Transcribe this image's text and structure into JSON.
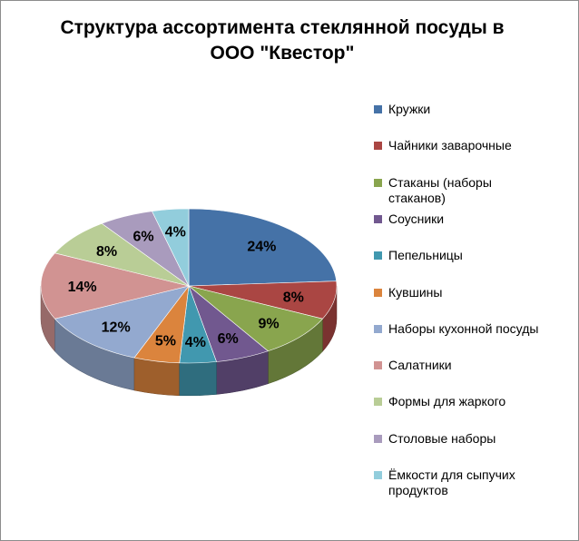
{
  "chart_data": {
    "type": "pie",
    "title": "Структура ассортимента стеклянной посуды в ООО \"Квестор\"",
    "title_lines": [
      "Структура ассортимента стеклянной посуды в",
      "ООО \"Квестор\""
    ],
    "style": "3d",
    "legend_position": "right",
    "categories": [
      "Кружки",
      "Чайники заварочные",
      "Стаканы (наборы стаканов)",
      "Соусники",
      "Пепельницы",
      "Кувшины",
      "Наборы кухонной посуды",
      "Салатники",
      "Формы для жаркого",
      "Столовые наборы",
      "Ёмкости для сыпучих продуктов"
    ],
    "legend_lines": [
      [
        "Кружки"
      ],
      [
        "Чайники заварочные"
      ],
      [
        "Стаканы (наборы",
        "стаканов)"
      ],
      [
        "Соусники"
      ],
      [
        "Пепельницы"
      ],
      [
        "Кувшины"
      ],
      [
        "Наборы кухонной посуды"
      ],
      [
        "Салатники"
      ],
      [
        "Формы для жаркого"
      ],
      [
        "Столовые наборы"
      ],
      [
        "Ёмкости для сыпучих",
        "продуктов"
      ]
    ],
    "values": [
      24,
      8,
      9,
      6,
      4,
      5,
      12,
      14,
      8,
      6,
      4
    ],
    "data_labels": [
      "24%",
      "8%",
      "9%",
      "6%",
      "4%",
      "5%",
      "12%",
      "14%",
      "8%",
      "6%",
      "4%"
    ],
    "colors": [
      "#4572A7",
      "#AA4643",
      "#89A54E",
      "#71588F",
      "#4198AF",
      "#DB843D",
      "#93A9CF",
      "#D19392",
      "#B9CD96",
      "#A99BBD",
      "#92CDDC"
    ]
  }
}
